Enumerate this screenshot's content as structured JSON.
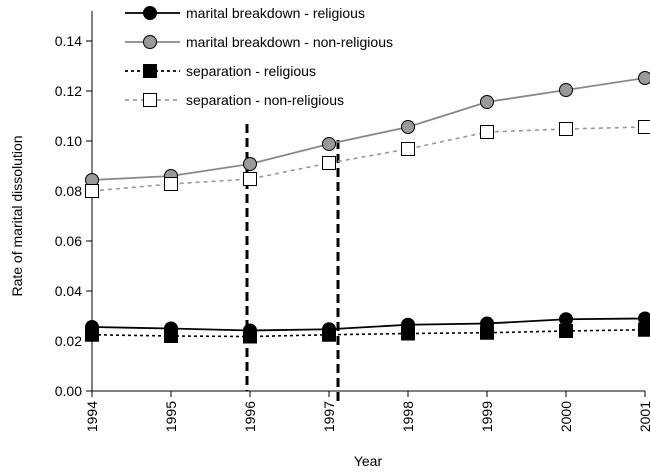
{
  "chart_data": {
    "type": "line",
    "x_label": "Year",
    "y_label": "Rate of marital dissolution",
    "x": [
      1994,
      1995,
      1996,
      1997,
      1998,
      1999,
      2000,
      2001
    ],
    "xlim": [
      1994,
      2001
    ],
    "xticks": [
      1994,
      1995,
      1996,
      1997,
      1998,
      1999,
      2000,
      2001
    ],
    "ylim": [
      0,
      0.14
    ],
    "yticks": [
      {
        "value": 0,
        "label": "0.00"
      },
      {
        "value": 0.02,
        "label": "0.02"
      },
      {
        "value": 0.04,
        "label": "0.04"
      },
      {
        "value": 0.06,
        "label": "0.06"
      },
      {
        "value": 0.08,
        "label": "0.08"
      },
      {
        "value": 0.1,
        "label": "0.10"
      },
      {
        "value": 0.12,
        "label": "0.12"
      },
      {
        "value": 0.14,
        "label": "0.14"
      }
    ],
    "legend": "top-left",
    "series": [
      {
        "name": "marital breakdown - religious",
        "color": "#000000",
        "marker": "circle",
        "marker_fill": "#000000",
        "dash": "none",
        "values": [
          0.0256,
          0.025,
          0.0242,
          0.0247,
          0.0265,
          0.027,
          0.0287,
          0.029
        ]
      },
      {
        "name": "marital breakdown - non-religious",
        "color": "#888888",
        "marker": "circle",
        "marker_fill": "#999999",
        "dash": "none",
        "values": [
          0.0844,
          0.086,
          0.0908,
          0.0988,
          0.1056,
          0.1156,
          0.1204,
          0.1252
        ]
      },
      {
        "name": "separation - religious",
        "color": "#000000",
        "marker": "square",
        "marker_fill": "#000000",
        "dash": "3,3",
        "values": [
          0.0225,
          0.022,
          0.0218,
          0.0225,
          0.023,
          0.0233,
          0.024,
          0.0245
        ]
      },
      {
        "name": "separation - non-religious",
        "color": "#999999",
        "marker": "square",
        "marker_fill": "#ffffff",
        "dash": "4,4",
        "values": [
          0.08,
          0.0828,
          0.0848,
          0.0912,
          0.0968,
          0.1036,
          0.1048,
          0.1056
        ]
      }
    ]
  }
}
